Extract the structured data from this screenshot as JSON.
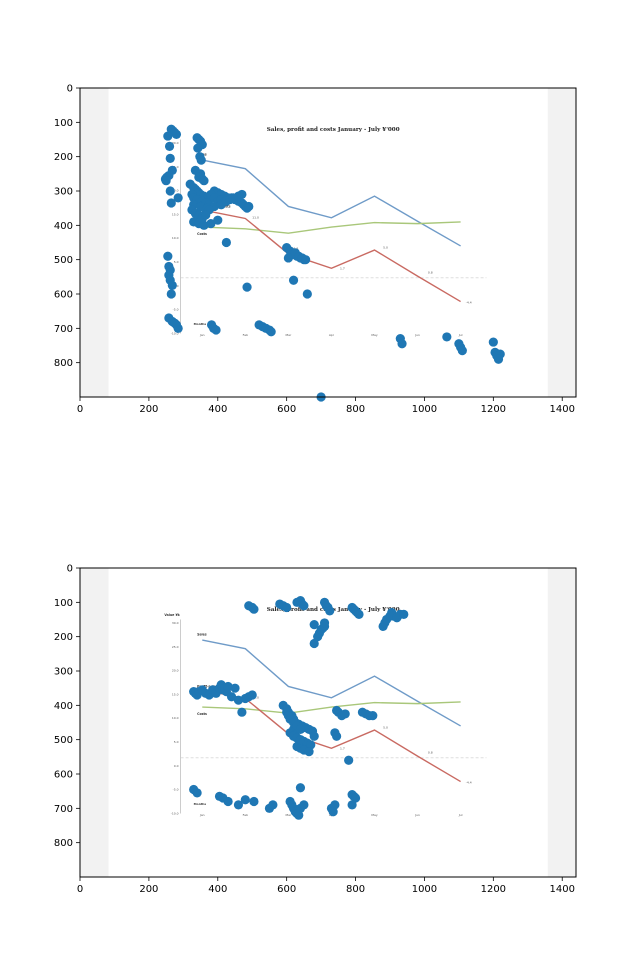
{
  "figure": {
    "panels": 2,
    "axes_color": "#000000",
    "background": "#ffffff",
    "image_background": "#f2f2f2",
    "scatter_color": "#1f77b4"
  },
  "axes": {
    "x_ticks": [
      0,
      200,
      400,
      600,
      800,
      1000,
      1200,
      1400
    ],
    "y_ticks": [
      0,
      100,
      200,
      300,
      400,
      500,
      600,
      700,
      800
    ],
    "xlim": [
      0,
      1440
    ],
    "ylim": [
      900,
      0
    ]
  },
  "embedded_chart": {
    "title": "Sales, profit and costs January - July ¥'000",
    "ylabel": "Value ¥k",
    "y_ticks": [
      "30.0",
      "25.0",
      "20.0",
      "15.0",
      "10.0",
      "5.0",
      "0.0",
      "-5.0",
      "-10.0"
    ],
    "months_label": "Months",
    "months": [
      "Jan",
      "Feb",
      "Mar",
      "Apr",
      "May",
      "Jun",
      "Jul"
    ],
    "series_labels": [
      "Sales",
      "Profit-sales - costs",
      "Costs"
    ],
    "data_labels": [
      "11.0",
      "4.9",
      "1.7",
      "5.0",
      "0.8",
      "-4.4"
    ],
    "colors": {
      "sales": "#6f9bc8",
      "profit": "#c96a62",
      "costs": "#a9c77a",
      "zero": "#bfbfbf"
    }
  },
  "chart_data": [
    {
      "type": "scatter",
      "xlim": [
        0,
        1440
      ],
      "ylim": [
        900,
        0
      ],
      "grid": false,
      "series": [
        {
          "x": [
            265,
            270,
            275,
            280,
            255,
            260,
            262,
            268,
            258,
            252,
            248,
            250,
            262,
            285,
            265,
            340,
            345,
            350,
            355,
            342,
            348,
            352,
            335,
            350,
            345,
            355,
            360,
            320,
            330,
            335,
            340,
            345,
            350,
            360,
            370,
            380,
            390,
            400,
            410,
            420,
            430,
            440,
            450,
            460,
            470,
            475,
            480,
            485,
            490,
            325,
            330,
            340,
            355,
            365,
            375,
            380,
            390,
            400,
            410,
            420,
            330,
            350,
            370,
            390,
            410,
            425,
            435,
            445,
            460,
            470,
            325,
            335,
            345,
            355,
            365,
            375,
            330,
            345,
            360,
            380,
            400,
            355,
            365,
            425,
            485,
            600,
            610,
            620,
            630,
            640,
            650,
            605,
            615,
            625,
            635,
            645,
            655,
            620,
            660,
            255,
            258,
            262,
            258,
            262,
            268,
            265,
            258,
            268,
            275,
            280,
            285,
            382,
            388,
            395,
            520,
            530,
            540,
            550,
            555,
            930,
            935,
            1065,
            1100,
            1105,
            1110,
            1200,
            1205,
            1210,
            1220,
            1215,
            700
          ],
          "y": [
            120,
            125,
            130,
            135,
            140,
            170,
            205,
            240,
            255,
            260,
            265,
            270,
            300,
            320,
            335,
            145,
            150,
            155,
            165,
            175,
            200,
            210,
            240,
            250,
            260,
            265,
            270,
            280,
            290,
            295,
            300,
            305,
            310,
            315,
            320,
            320,
            300,
            305,
            310,
            315,
            320,
            320,
            325,
            330,
            335,
            340,
            345,
            350,
            345,
            310,
            320,
            325,
            330,
            335,
            340,
            310,
            320,
            330,
            325,
            330,
            340,
            345,
            350,
            345,
            340,
            330,
            325,
            320,
            315,
            310,
            355,
            365,
            370,
            375,
            365,
            355,
            390,
            395,
            400,
            395,
            385,
            380,
            370,
            450,
            580,
            465,
            475,
            485,
            490,
            495,
            500,
            495,
            485,
            480,
            490,
            495,
            500,
            560,
            600,
            490,
            520,
            530,
            545,
            560,
            575,
            600,
            670,
            680,
            685,
            690,
            700,
            690,
            700,
            705,
            690,
            695,
            700,
            705,
            710,
            730,
            745,
            725,
            745,
            755,
            765,
            740,
            770,
            780,
            775,
            790,
            900
          ]
        }
      ]
    },
    {
      "type": "scatter",
      "xlim": [
        0,
        1440
      ],
      "ylim": [
        900,
        0
      ],
      "grid": false,
      "series": [
        {
          "x": [
            490,
            500,
            505,
            580,
            590,
            600,
            630,
            640,
            645,
            650,
            710,
            715,
            720,
            725,
            680,
            690,
            695,
            700,
            705,
            710,
            680,
            710,
            790,
            795,
            800,
            805,
            810,
            880,
            885,
            890,
            900,
            905,
            910,
            920,
            930,
            940,
            330,
            335,
            340,
            345,
            355,
            365,
            375,
            385,
            395,
            405,
            415,
            425,
            440,
            460,
            480,
            490,
            500,
            410,
            420,
            430,
            450,
            470,
            590,
            600,
            605,
            615,
            620,
            625,
            635,
            645,
            655,
            665,
            675,
            610,
            620,
            625,
            630,
            640,
            650,
            660,
            670,
            680,
            630,
            640,
            650,
            665,
            600,
            605,
            610,
            620,
            630,
            640,
            620,
            630,
            640,
            745,
            750,
            760,
            770,
            820,
            830,
            840,
            850,
            740,
            745,
            780,
            330,
            340,
            405,
            415,
            430,
            460,
            480,
            505,
            550,
            560,
            610,
            615,
            620,
            625,
            630,
            635,
            640,
            650,
            730,
            735,
            740,
            790,
            795,
            800,
            790,
            640
          ],
          "y": [
            110,
            115,
            120,
            105,
            110,
            115,
            100,
            95,
            105,
            110,
            100,
            110,
            115,
            125,
            220,
            200,
            190,
            180,
            175,
            170,
            165,
            160,
            115,
            120,
            125,
            130,
            135,
            170,
            160,
            150,
            140,
            130,
            140,
            145,
            135,
            135,
            360,
            365,
            370,
            360,
            355,
            365,
            370,
            355,
            365,
            350,
            355,
            360,
            375,
            385,
            380,
            375,
            370,
            340,
            350,
            345,
            350,
            420,
            400,
            410,
            420,
            430,
            440,
            450,
            455,
            460,
            465,
            470,
            475,
            480,
            470,
            485,
            495,
            500,
            505,
            510,
            515,
            490,
            520,
            525,
            530,
            535,
            420,
            430,
            440,
            450,
            460,
            470,
            490,
            495,
            500,
            415,
            420,
            430,
            425,
            420,
            425,
            430,
            430,
            480,
            490,
            560,
            645,
            655,
            665,
            670,
            680,
            690,
            675,
            680,
            700,
            690,
            680,
            690,
            700,
            710,
            715,
            720,
            700,
            690,
            700,
            710,
            690,
            660,
            665,
            670,
            690,
            640
          ]
        }
      ]
    }
  ]
}
